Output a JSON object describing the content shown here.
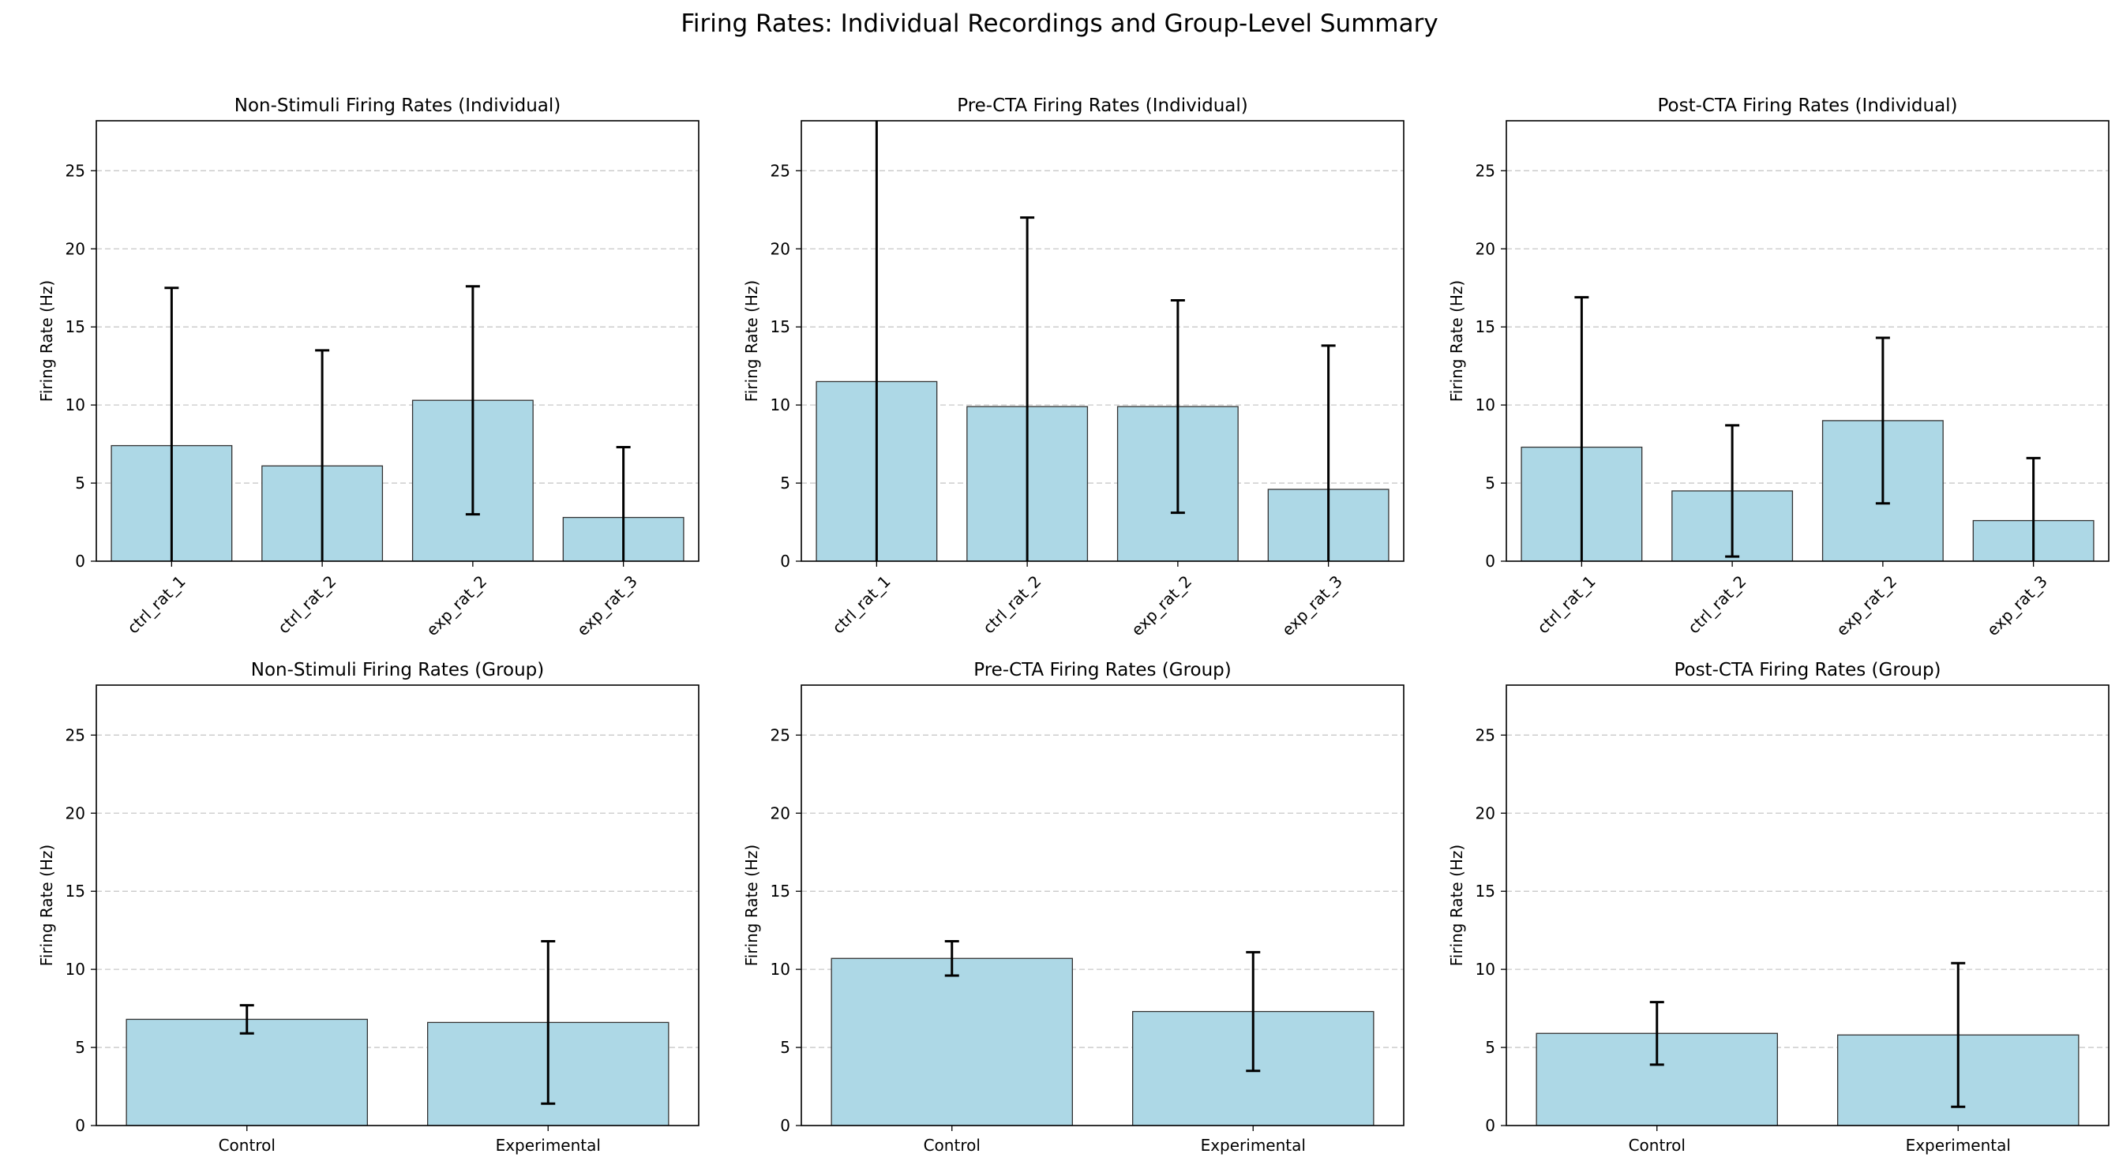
{
  "figure": {
    "title": "Firing Rates: Individual Recordings and Group-Level Summary"
  },
  "style": {
    "bar_fill": "#add8e6",
    "bar_edge": "#333333",
    "error_color": "#000000",
    "grid_color": "#c8c8c8"
  },
  "chart_data": [
    {
      "type": "bar",
      "title": "Non-Stimuli Firing Rates (Individual)",
      "ylabel": "Firing Rate (Hz)",
      "categories": [
        "ctrl_rat_1",
        "ctrl_rat_2",
        "exp_rat_2",
        "exp_rat_3"
      ],
      "values": [
        7.4,
        6.1,
        10.3,
        2.8
      ],
      "errors": [
        10.1,
        7.4,
        7.3,
        4.5
      ],
      "ylim": [
        0,
        28.2
      ],
      "yticks": [
        0,
        5,
        10,
        15,
        20,
        25
      ],
      "xtick_rotation": 45,
      "grid": "y-dashed"
    },
    {
      "type": "bar",
      "title": "Pre-CTA Firing Rates (Individual)",
      "ylabel": "Firing Rate (Hz)",
      "categories": [
        "ctrl_rat_1",
        "ctrl_rat_2",
        "exp_rat_2",
        "exp_rat_3"
      ],
      "values": [
        11.5,
        9.9,
        9.9,
        4.6
      ],
      "errors": [
        17.0,
        12.1,
        6.8,
        9.2
      ],
      "ylim": [
        0,
        28.2
      ],
      "yticks": [
        0,
        5,
        10,
        15,
        20,
        25
      ],
      "xtick_rotation": 45,
      "grid": "y-dashed"
    },
    {
      "type": "bar",
      "title": "Post-CTA Firing Rates (Individual)",
      "ylabel": "Firing Rate (Hz)",
      "categories": [
        "ctrl_rat_1",
        "ctrl_rat_2",
        "exp_rat_2",
        "exp_rat_3"
      ],
      "values": [
        7.3,
        4.5,
        9.0,
        2.6
      ],
      "errors": [
        9.6,
        4.2,
        5.3,
        4.0
      ],
      "ylim": [
        0,
        28.2
      ],
      "yticks": [
        0,
        5,
        10,
        15,
        20,
        25
      ],
      "xtick_rotation": 45,
      "grid": "y-dashed"
    },
    {
      "type": "bar",
      "title": "Non-Stimuli Firing Rates (Group)",
      "ylabel": "Firing Rate (Hz)",
      "categories": [
        "Control",
        "Experimental"
      ],
      "values": [
        6.8,
        6.6
      ],
      "errors": [
        0.9,
        5.2
      ],
      "ylim": [
        0,
        28.2
      ],
      "yticks": [
        0,
        5,
        10,
        15,
        20,
        25
      ],
      "xtick_rotation": 0,
      "grid": "y-dashed"
    },
    {
      "type": "bar",
      "title": "Pre-CTA Firing Rates (Group)",
      "ylabel": "Firing Rate (Hz)",
      "categories": [
        "Control",
        "Experimental"
      ],
      "values": [
        10.7,
        7.3
      ],
      "errors": [
        1.1,
        3.8
      ],
      "ylim": [
        0,
        28.2
      ],
      "yticks": [
        0,
        5,
        10,
        15,
        20,
        25
      ],
      "xtick_rotation": 0,
      "grid": "y-dashed"
    },
    {
      "type": "bar",
      "title": "Post-CTA Firing Rates (Group)",
      "ylabel": "Firing Rate (Hz)",
      "categories": [
        "Control",
        "Experimental"
      ],
      "values": [
        5.9,
        5.8
      ],
      "errors": [
        2.0,
        4.6
      ],
      "ylim": [
        0,
        28.2
      ],
      "yticks": [
        0,
        5,
        10,
        15,
        20,
        25
      ],
      "xtick_rotation": 0,
      "grid": "y-dashed"
    }
  ]
}
